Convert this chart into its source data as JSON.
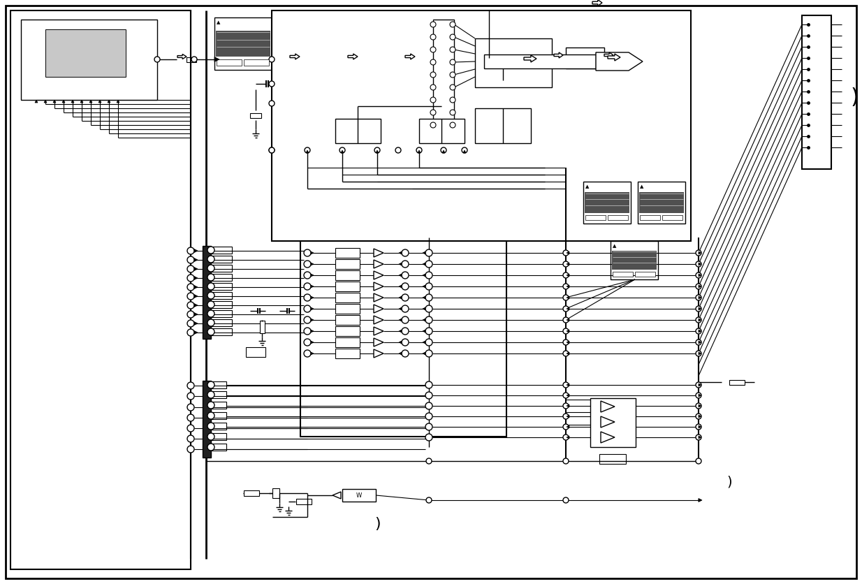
{
  "bg": "#ffffff",
  "lc": "#000000",
  "dark": "#404040",
  "mid_gray": "#808080",
  "light_gray": "#c8c8c8"
}
